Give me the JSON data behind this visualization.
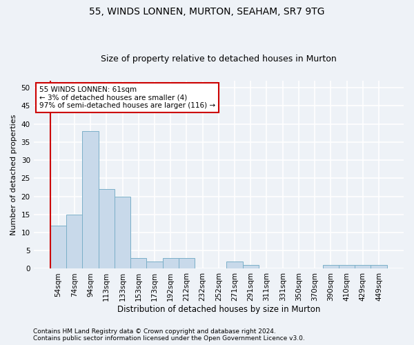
{
  "title1": "55, WINDS LONNEN, MURTON, SEAHAM, SR7 9TG",
  "title2": "Size of property relative to detached houses in Murton",
  "xlabel": "Distribution of detached houses by size in Murton",
  "ylabel": "Number of detached properties",
  "categories": [
    "54sqm",
    "74sqm",
    "94sqm",
    "113sqm",
    "133sqm",
    "153sqm",
    "173sqm",
    "192sqm",
    "212sqm",
    "232sqm",
    "252sqm",
    "271sqm",
    "291sqm",
    "311sqm",
    "331sqm",
    "350sqm",
    "370sqm",
    "390sqm",
    "410sqm",
    "429sqm",
    "449sqm"
  ],
  "values": [
    12,
    15,
    38,
    22,
    20,
    3,
    2,
    3,
    3,
    0,
    0,
    2,
    1,
    0,
    0,
    0,
    0,
    1,
    1,
    1,
    1
  ],
  "bar_color": "#c8d9ea",
  "bar_edge_color": "#7aafc8",
  "annotation_title": "55 WINDS LONNEN: 61sqm",
  "annotation_line1": "← 3% of detached houses are smaller (4)",
  "annotation_line2": "97% of semi-detached houses are larger (116) →",
  "annotation_box_color": "#ffffff",
  "annotation_border_color": "#cc0000",
  "red_line_color": "#cc0000",
  "ylim": [
    0,
    52
  ],
  "yticks": [
    0,
    5,
    10,
    15,
    20,
    25,
    30,
    35,
    40,
    45,
    50
  ],
  "footer1": "Contains HM Land Registry data © Crown copyright and database right 2024.",
  "footer2": "Contains public sector information licensed under the Open Government Licence v3.0.",
  "bg_color": "#eef2f7",
  "plot_bg_color": "#eef2f7",
  "grid_color": "#ffffff",
  "title1_fontsize": 10,
  "title2_fontsize": 9,
  "xlabel_fontsize": 8.5,
  "ylabel_fontsize": 8,
  "tick_fontsize": 7.5,
  "footer_fontsize": 6.5,
  "annot_fontsize": 7.5
}
